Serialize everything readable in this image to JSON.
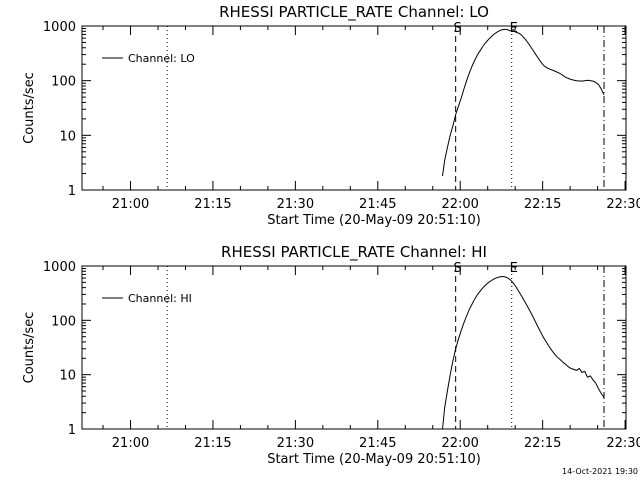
{
  "stamp": "14-Oct-2021 19:30",
  "colors": {
    "background": "#ffffff",
    "foreground": "#000000"
  },
  "chart_data": [
    {
      "type": "line",
      "title": "RHESSI PARTICLE_RATE Channel: LO",
      "xlabel": "Start Time (20-May-09 20:51:10)",
      "ylabel": "Counts/sec",
      "x_unit": "minutes after 20:51:10 (20-May-09)",
      "xlim": [
        0,
        99
      ],
      "ylim": [
        1,
        1000
      ],
      "yscale": "log",
      "xticks": [
        {
          "value": 8.83,
          "label": "21:00"
        },
        {
          "value": 23.83,
          "label": "21:15"
        },
        {
          "value": 38.83,
          "label": "21:30"
        },
        {
          "value": 53.83,
          "label": "21:45"
        },
        {
          "value": 68.83,
          "label": "22:00"
        },
        {
          "value": 83.83,
          "label": "22:15"
        },
        {
          "value": 98.83,
          "label": "22:30"
        }
      ],
      "yticks": [
        {
          "value": 1,
          "label": "1"
        },
        {
          "value": 10,
          "label": "10"
        },
        {
          "value": 100,
          "label": "100"
        },
        {
          "value": 1000,
          "label": "1000"
        }
      ],
      "legend": {
        "label": "Channel: LO",
        "position": "top-left"
      },
      "markers": [
        {
          "x": 15.5,
          "style": "dotted",
          "label": ""
        },
        {
          "x": 68.0,
          "style": "dashed",
          "label": "S"
        },
        {
          "x": 78.2,
          "style": "dotted",
          "label": "E"
        },
        {
          "x": 95.0,
          "style": "dashdot",
          "label": ""
        }
      ],
      "series": [
        {
          "name": "Channel: LO",
          "x": [
            65.6,
            66.0,
            66.5,
            67.0,
            67.5,
            68.0,
            68.5,
            69.0,
            69.5,
            70.0,
            70.5,
            71.0,
            71.5,
            72.0,
            72.5,
            73.0,
            73.5,
            74.0,
            74.5,
            75.0,
            75.5,
            76.0,
            76.5,
            77.0,
            77.5,
            78.0,
            78.5,
            79.0,
            79.5,
            80.0,
            80.5,
            81.0,
            81.5,
            82.0,
            82.5,
            83.0,
            83.5,
            84.0,
            84.5,
            85.0,
            86.0,
            87.0,
            88.0,
            89.0,
            90.0,
            91.0,
            92.0,
            93.0,
            93.5,
            94.0,
            94.5,
            95.0
          ],
          "y": [
            1.8,
            3.5,
            6.0,
            10,
            15,
            24,
            34,
            48,
            70,
            100,
            140,
            185,
            240,
            300,
            360,
            430,
            500,
            570,
            640,
            710,
            770,
            820,
            860,
            870,
            850,
            810,
            860,
            760,
            740,
            680,
            600,
            520,
            440,
            370,
            310,
            260,
            220,
            190,
            175,
            165,
            150,
            135,
            115,
            105,
            100,
            98,
            102,
            98,
            92,
            85,
            70,
            55
          ]
        }
      ]
    },
    {
      "type": "line",
      "title": "RHESSI PARTICLE_RATE Channel: HI",
      "xlabel": "Start Time (20-May-09 20:51:10)",
      "ylabel": "Counts/sec",
      "x_unit": "minutes after 20:51:10 (20-May-09)",
      "xlim": [
        0,
        99
      ],
      "ylim": [
        1,
        1000
      ],
      "yscale": "log",
      "xticks": [
        {
          "value": 8.83,
          "label": "21:00"
        },
        {
          "value": 23.83,
          "label": "21:15"
        },
        {
          "value": 38.83,
          "label": "21:30"
        },
        {
          "value": 53.83,
          "label": "21:45"
        },
        {
          "value": 68.83,
          "label": "22:00"
        },
        {
          "value": 83.83,
          "label": "22:15"
        },
        {
          "value": 98.83,
          "label": "22:30"
        }
      ],
      "yticks": [
        {
          "value": 1,
          "label": "1"
        },
        {
          "value": 10,
          "label": "10"
        },
        {
          "value": 100,
          "label": "100"
        },
        {
          "value": 1000,
          "label": "1000"
        }
      ],
      "legend": {
        "label": "Channel: HI",
        "position": "top-left"
      },
      "markers": [
        {
          "x": 15.5,
          "style": "dotted",
          "label": ""
        },
        {
          "x": 68.0,
          "style": "dashed",
          "label": "S"
        },
        {
          "x": 78.2,
          "style": "dotted",
          "label": "E"
        },
        {
          "x": 95.0,
          "style": "dashdot",
          "label": ""
        }
      ],
      "series": [
        {
          "name": "Channel: HI",
          "x": [
            65.6,
            66.0,
            66.5,
            67.0,
            67.5,
            68.0,
            68.5,
            69.0,
            69.5,
            70.0,
            70.5,
            71.0,
            71.5,
            72.0,
            72.5,
            73.0,
            73.5,
            74.0,
            74.5,
            75.0,
            75.5,
            76.0,
            76.5,
            77.0,
            77.5,
            78.0,
            78.5,
            79.0,
            79.5,
            80.0,
            80.5,
            81.0,
            81.5,
            82.0,
            82.5,
            83.0,
            83.5,
            84.0,
            84.5,
            85.0,
            85.5,
            86.0,
            86.5,
            87.0,
            87.5,
            88.0,
            88.5,
            89.0,
            89.5,
            90.0,
            90.5,
            91.0,
            91.5,
            92.0,
            92.5,
            93.0,
            93.5,
            94.0,
            94.5,
            95.0
          ],
          "y": [
            1.0,
            2.5,
            5.0,
            10,
            18,
            30,
            45,
            65,
            90,
            120,
            160,
            200,
            250,
            300,
            350,
            400,
            450,
            500,
            540,
            580,
            610,
            630,
            640,
            630,
            600,
            550,
            480,
            410,
            340,
            280,
            230,
            185,
            150,
            120,
            95,
            75,
            60,
            48,
            40,
            33,
            28,
            24,
            21,
            19,
            17,
            15.5,
            14,
            13,
            12.5,
            12,
            13,
            11,
            11.5,
            9,
            9.5,
            8,
            7,
            5.5,
            4.5,
            3.8
          ]
        }
      ]
    }
  ]
}
